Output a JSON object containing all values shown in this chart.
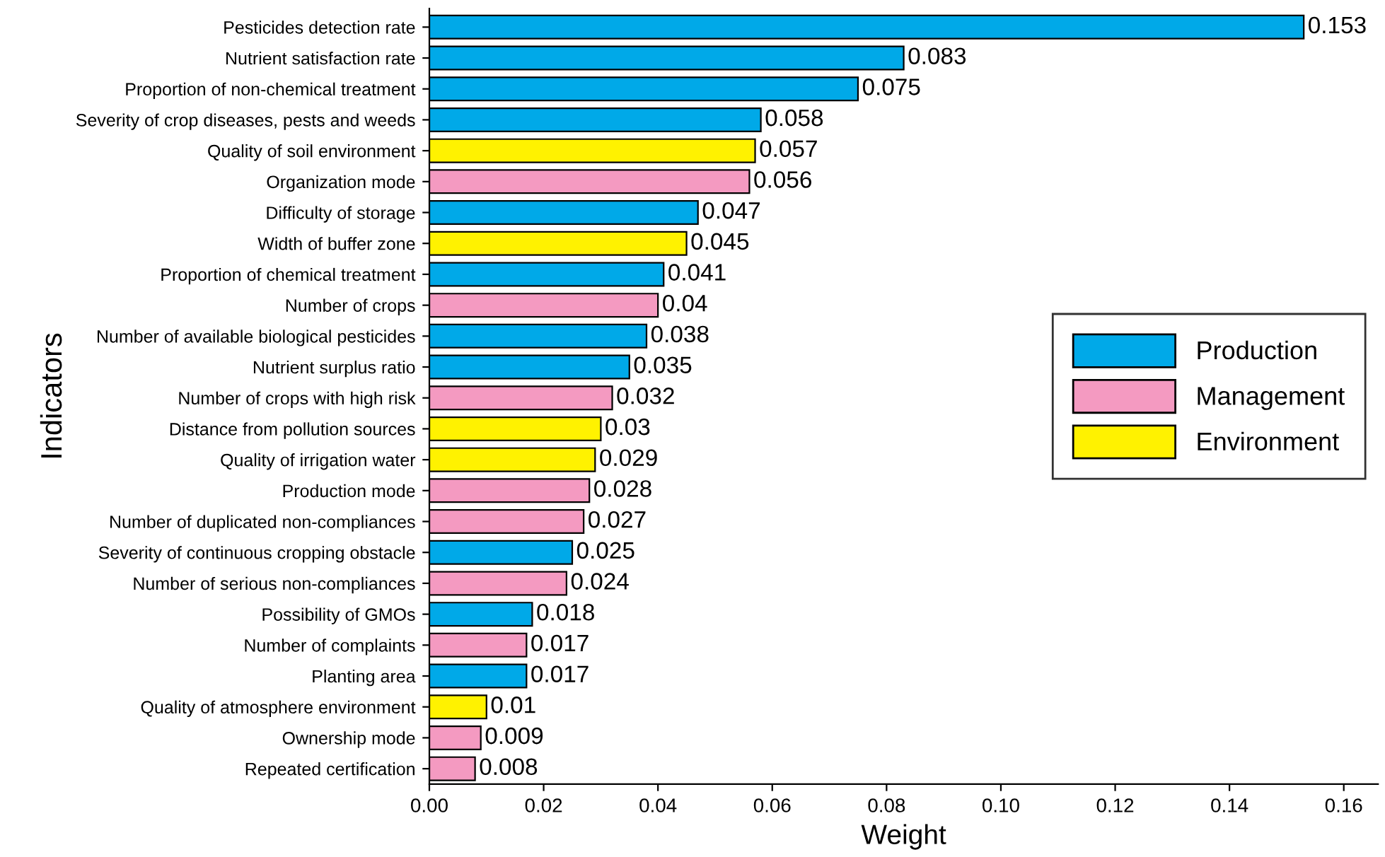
{
  "chart_data": {
    "type": "bar",
    "orientation": "horizontal",
    "xlabel": "Weight",
    "ylabel": "Indicators",
    "categories": [
      "Pesticides detection rate",
      "Nutrient satisfaction rate",
      "Proportion of non-chemical treatment",
      "Severity of crop diseases, pests and weeds",
      "Quality of soil environment",
      "Organization mode",
      "Difficulty of storage",
      "Width of buffer zone",
      "Proportion of chemical treatment",
      "Number of crops",
      "Number of available biological pesticides",
      "Nutrient surplus ratio",
      "Number of crops with high risk",
      "Distance from pollution sources",
      "Quality of irrigation water",
      "Production mode",
      "Number of duplicated non-compliances",
      "Severity of continuous cropping obstacle",
      "Number of serious non-compliances",
      "Possibility of GMOs",
      "Number of complaints",
      "Planting area",
      "Quality of atmosphere environment",
      "Ownership mode",
      "Repeated certification"
    ],
    "series": [
      {
        "name": "Production",
        "color": "#00a9e8",
        "values": [
          0.153,
          0.083,
          0.075,
          0.058,
          null,
          null,
          0.047,
          null,
          0.041,
          null,
          0.038,
          0.035,
          null,
          null,
          null,
          null,
          null,
          0.025,
          null,
          0.018,
          null,
          0.017,
          null,
          null,
          null
        ]
      },
      {
        "name": "Management",
        "color": "#f49ac1",
        "values": [
          null,
          null,
          null,
          null,
          null,
          0.056,
          null,
          null,
          null,
          0.04,
          null,
          null,
          0.032,
          null,
          null,
          0.028,
          0.027,
          null,
          0.024,
          null,
          0.017,
          null,
          null,
          0.009,
          0.008
        ]
      },
      {
        "name": "Environment",
        "color": "#fff200",
        "values": [
          null,
          null,
          null,
          null,
          0.057,
          null,
          null,
          0.045,
          null,
          null,
          null,
          null,
          null,
          0.03,
          0.029,
          null,
          null,
          null,
          null,
          null,
          null,
          null,
          0.01,
          null,
          null
        ]
      }
    ],
    "xlim": [
      0,
      0.166
    ],
    "xticks": [
      {
        "value": 0,
        "label": "0.00"
      },
      {
        "value": 0.02,
        "label": "0.02"
      },
      {
        "value": 0.04,
        "label": "0.04"
      },
      {
        "value": 0.06,
        "label": "0.06"
      },
      {
        "value": 0.08,
        "label": "0.08"
      },
      {
        "value": 0.1,
        "label": "0.10"
      },
      {
        "value": 0.12,
        "label": "0.12"
      },
      {
        "value": 0.14,
        "label": "0.14"
      },
      {
        "value": 0.16,
        "label": "0.16"
      }
    ],
    "data_labels": true,
    "legend": "right",
    "grid": false
  }
}
